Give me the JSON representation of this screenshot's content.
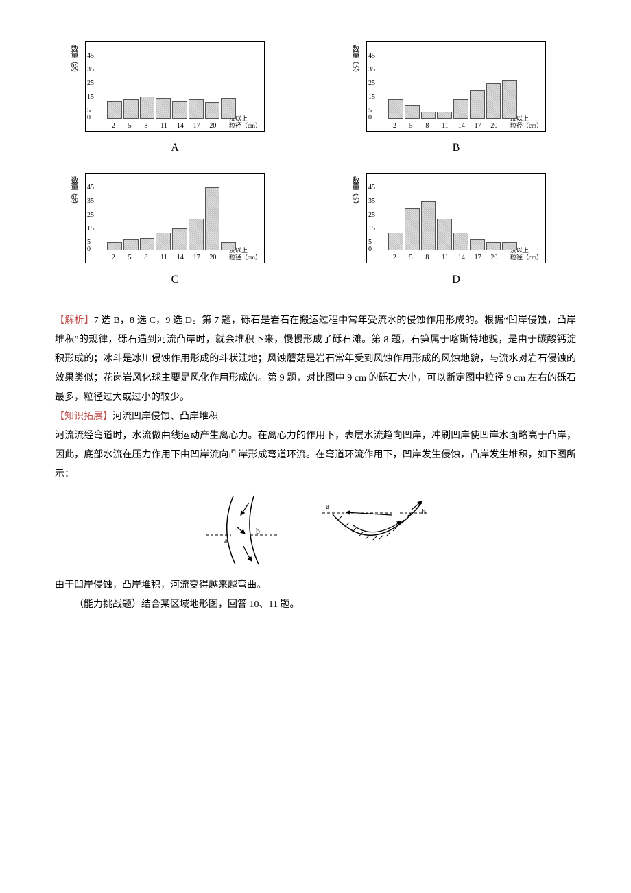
{
  "charts": {
    "y_label": "数量（％）",
    "y_ticks": [
      {
        "v": 45,
        "t": "45"
      },
      {
        "v": 35,
        "t": "35"
      },
      {
        "v": 25,
        "t": "25"
      },
      {
        "v": 15,
        "t": "15"
      },
      {
        "v": 5,
        "t": "5"
      },
      {
        "v": 0,
        "t": "0"
      }
    ],
    "x_ticks": [
      "2",
      "5",
      "8",
      "11",
      "14",
      "17",
      "20"
    ],
    "x_right_label_top": "及以上",
    "x_right_label_bot": "粒径（cm）",
    "max": 50,
    "items": [
      {
        "letter": "A",
        "bars": [
          12,
          13,
          15,
          14,
          12,
          13,
          11,
          14
        ]
      },
      {
        "letter": "B",
        "bars": [
          13,
          9,
          4,
          4,
          13,
          20,
          25,
          27
        ]
      },
      {
        "letter": "C",
        "bars": [
          5,
          7,
          8,
          12,
          15,
          22,
          45,
          5
        ]
      },
      {
        "letter": "D",
        "bars": [
          12,
          30,
          35,
          22,
          12,
          7,
          5,
          5
        ]
      }
    ]
  },
  "analysis_label": "【解析】",
  "analysis_text": "7 选 B，8 选 C，9 选 D。第 7 题，砾石是岩石在搬运过程中常年受流水的侵蚀作用形成的。根据“凹岸侵蚀，凸岸堆积”的规律，砾石遇到河流凸岸时，就会堆积下来，慢慢形成了砾石滩。第 8 题，石笋属于喀斯特地貌，是由于碳酸钙淀积形成的；冰斗是冰川侵蚀作用形成的斗状洼地；风蚀蘑菇是岩石常年受到风蚀作用形成的风蚀地貌，与流水对岩石侵蚀的效果类似；花岗岩风化球主要是风化作用形成的。第 9 题，对比图中 9 cm 的砾石大小，可以断定图中粒径 9 cm 左右的砾石最多，粒径过大或过小的较少。",
  "knowledge_label": "【知识拓展】",
  "knowledge_title": "河流凹岸侵蚀、凸岸堆积",
  "knowledge_p1": "河流流经弯道时，水流做曲线运动产生离心力。在离心力的作用下，表层水流趋向凹岸，冲刷凹岸使凹岸水面略高于凸岸，因此，底部水流在压力作用下由凹岸流向凸岸形成弯道环流。在弯道环流作用下，凹岸发生侵蚀，凸岸发生堆积，如下图所示：",
  "post_diagram": "由于凹岸侵蚀，凸岸堆积，河流变得越来越弯曲。",
  "challenge": "（能力挑战题）结合某区域地形图，回答 10、11 题。",
  "diagram_labels": {
    "a": "a",
    "b": "b"
  }
}
